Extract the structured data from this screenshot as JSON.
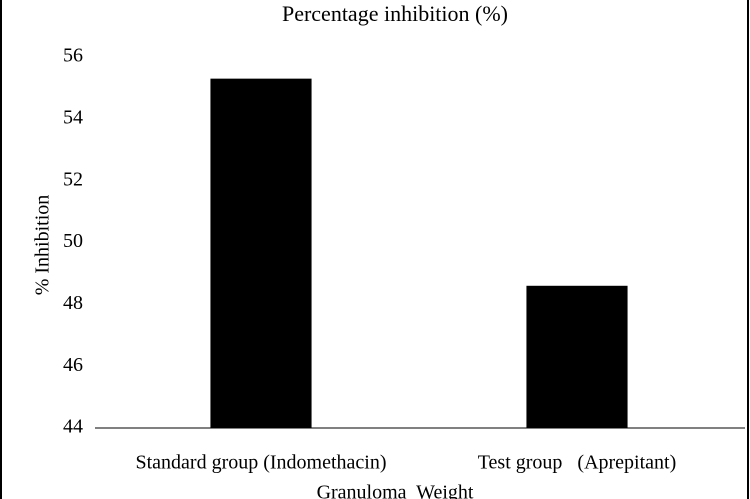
{
  "chart_data": {
    "type": "bar",
    "title": "Percentage inhibition (%)",
    "y_label": "% Inhibition",
    "x_label": "Granuloma  Weight",
    "categories": [
      "Standard group (Indomethacin)",
      "Test group   (Aprepitant)"
    ],
    "values": [
      55.3,
      48.6
    ],
    "color": "#000000",
    "ylim": [
      44,
      56
    ],
    "yticks": [
      44,
      46,
      48,
      50,
      52,
      54,
      56
    ],
    "grid": false
  }
}
